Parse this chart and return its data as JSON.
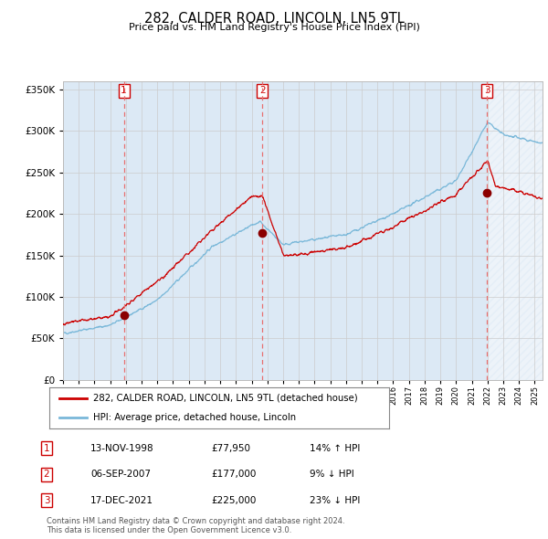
{
  "title": "282, CALDER ROAD, LINCOLN, LN5 9TL",
  "subtitle": "Price paid vs. HM Land Registry's House Price Index (HPI)",
  "legend_line1": "282, CALDER ROAD, LINCOLN, LN5 9TL (detached house)",
  "legend_line2": "HPI: Average price, detached house, Lincoln",
  "footer1": "Contains HM Land Registry data © Crown copyright and database right 2024.",
  "footer2": "This data is licensed under the Open Government Licence v3.0.",
  "table": [
    {
      "num": "1",
      "date": "13-NOV-1998",
      "price": "£77,950",
      "hpi": "14% ↑ HPI"
    },
    {
      "num": "2",
      "date": "06-SEP-2007",
      "price": "£177,000",
      "hpi": "9% ↓ HPI"
    },
    {
      "num": "3",
      "date": "17-DEC-2021",
      "price": "£225,000",
      "hpi": "23% ↓ HPI"
    }
  ],
  "sale_dates": [
    1998.87,
    2007.68,
    2021.96
  ],
  "sale_prices": [
    77950,
    177000,
    225000
  ],
  "hpi_color": "#7ab8d9",
  "price_color": "#cc0000",
  "dot_color": "#8b0000",
  "bg_color": "#ffffff",
  "shaded_color": "#dce9f5",
  "grid_color": "#cccccc",
  "dashed_color": "#e87070",
  "ylim": [
    0,
    360000
  ],
  "yticks": [
    0,
    50000,
    100000,
    150000,
    200000,
    250000,
    300000,
    350000
  ],
  "xlim_start": 1995.0,
  "xlim_end": 2025.5
}
